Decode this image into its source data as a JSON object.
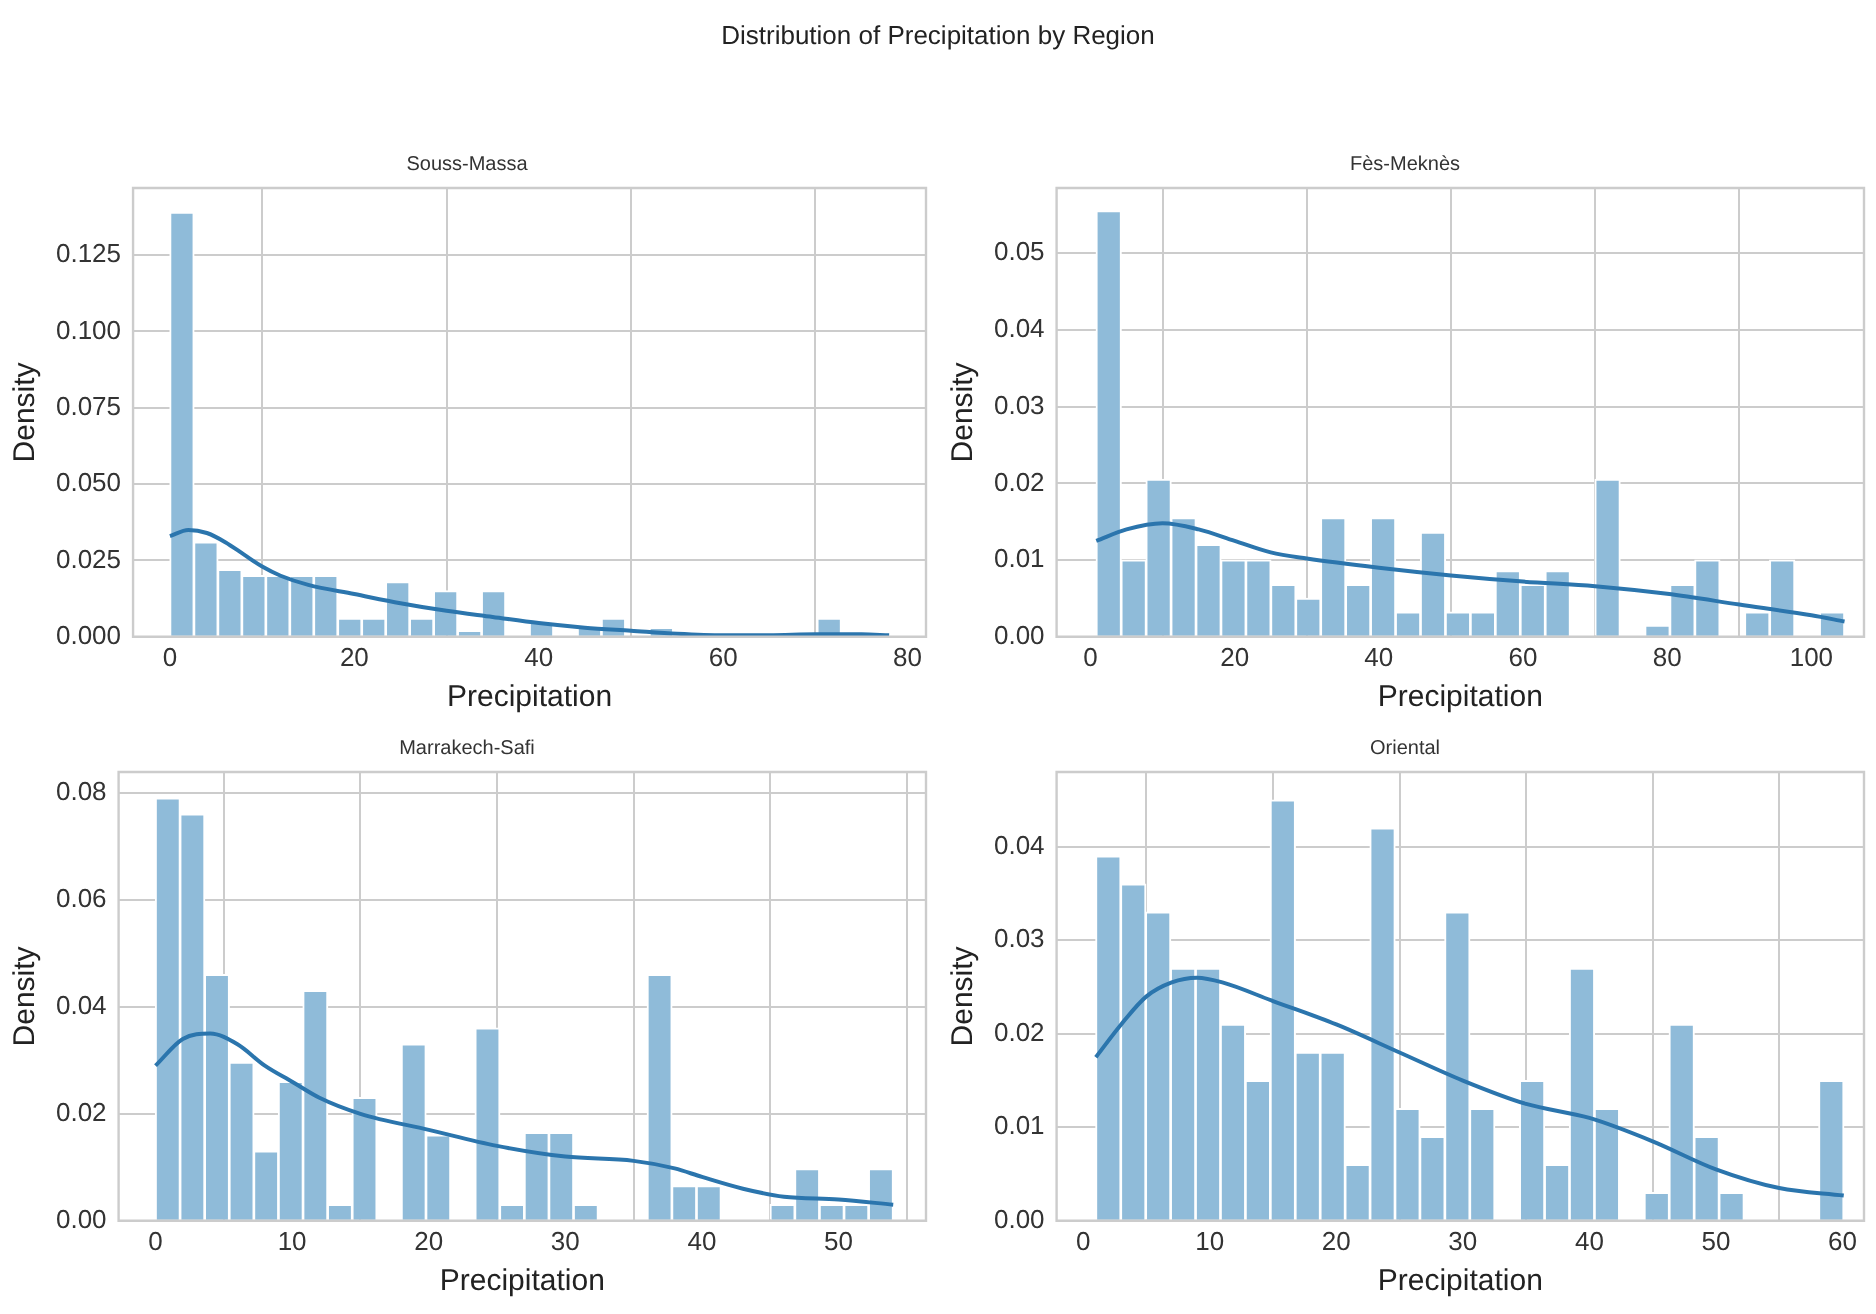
{
  "chart_data": [
    {
      "type": "histogram",
      "title": "Souss-Massa",
      "xlabel": "Precipitation",
      "ylabel": "Density",
      "annotations": [
        "Distribution of Precipitation by Region"
      ],
      "grid": true,
      "xlim": [
        -4,
        82
      ],
      "ylim": [
        0,
        0.147
      ],
      "xticks": [
        0,
        20,
        40,
        60,
        80
      ],
      "yticks": [
        {
          "value": 0,
          "label": "0.000"
        },
        {
          "value": 0.025,
          "label": "0.025"
        },
        {
          "value": 0.05,
          "label": "0.050"
        },
        {
          "value": 0.075,
          "label": "0.075"
        },
        {
          "value": 0.1,
          "label": "0.100"
        },
        {
          "value": 0.125,
          "label": "0.125"
        }
      ],
      "series": [
        {
          "color": "#8fbbd9",
          "bins": [
            0,
            2.6,
            5.2,
            7.8,
            10.4,
            13,
            15.6,
            18.2,
            20.8,
            23.4,
            26,
            28.6,
            31.2,
            33.8,
            36.4,
            39,
            41.6,
            44.2,
            46.8,
            49.4,
            52,
            54.6,
            57.2,
            59.8,
            62.4,
            65,
            67.6,
            70.2,
            72.8,
            75.4,
            78
          ],
          "values": [
            0.139,
            0.031,
            0.022,
            0.02,
            0.02,
            0.02,
            0.02,
            0.006,
            0.006,
            0.018,
            0.006,
            0.015,
            0.002,
            0.015,
            0,
            0.005,
            0,
            0.003,
            0.006,
            0,
            0.003,
            0,
            0,
            0,
            0,
            0,
            0,
            0.006,
            0,
            0
          ]
        },
        {
          "type": "line",
          "color": "#2b75ad",
          "x": [
            0,
            2,
            4,
            6,
            8,
            10,
            12,
            15,
            20,
            25,
            30,
            35,
            40,
            45,
            50,
            55,
            60,
            65,
            70,
            75,
            78
          ],
          "values": [
            0.033,
            0.035,
            0.034,
            0.031,
            0.027,
            0.023,
            0.02,
            0.017,
            0.014,
            0.011,
            0.0085,
            0.0065,
            0.0045,
            0.003,
            0.002,
            0.001,
            0.0005,
            0.0005,
            0.0008,
            0.0008,
            0.0005
          ]
        }
      ]
    },
    {
      "type": "histogram",
      "title": "Fès-Meknès",
      "xlabel": "Precipitation",
      "ylabel": "Density",
      "grid": true,
      "xlim": [
        -4.7,
        107.3
      ],
      "ylim": [
        0,
        0.0585
      ],
      "xticks": [
        0,
        20,
        40,
        60,
        80,
        100
      ],
      "yticks": [
        {
          "value": 0,
          "label": "0.00"
        },
        {
          "value": 0.01,
          "label": "0.01"
        },
        {
          "value": 0.02,
          "label": "0.02"
        },
        {
          "value": 0.03,
          "label": "0.03"
        },
        {
          "value": 0.04,
          "label": "0.04"
        },
        {
          "value": 0.05,
          "label": "0.05"
        }
      ],
      "series": [
        {
          "color": "#8fbbd9",
          "bins": [
            0.8,
            4.26,
            7.72,
            11.18,
            14.64,
            18.1,
            21.56,
            25.02,
            28.48,
            31.94,
            35.4,
            38.86,
            42.32,
            45.78,
            49.24,
            52.7,
            56.16,
            59.62,
            63.08,
            66.54,
            70,
            73.46,
            76.92,
            80.38,
            83.84,
            87.3,
            90.76,
            94.22,
            97.68,
            101.14,
            104.6
          ],
          "values": [
            0.0555,
            0.01,
            0.0205,
            0.0155,
            0.012,
            0.01,
            0.01,
            0.0068,
            0.005,
            0.0155,
            0.0068,
            0.0155,
            0.0032,
            0.0136,
            0.0032,
            0.0032,
            0.0086,
            0.0068,
            0.0086,
            0,
            0.0205,
            0,
            0.0015,
            0.0068,
            0.01,
            0,
            0.0032,
            0.01,
            0,
            0.0032
          ]
        },
        {
          "type": "line",
          "color": "#2b75ad",
          "x": [
            0.8,
            5,
            10,
            15,
            20,
            25,
            30,
            40,
            50,
            60,
            70,
            80,
            90,
            100,
            104.6
          ],
          "values": [
            0.0125,
            0.014,
            0.0148,
            0.014,
            0.0125,
            0.011,
            0.0102,
            0.009,
            0.008,
            0.0072,
            0.0066,
            0.0056,
            0.0042,
            0.0028,
            0.002
          ]
        }
      ]
    },
    {
      "type": "histogram",
      "title": "Marrakech-Safi",
      "xlabel": "Precipitation",
      "ylabel": "Density",
      "grid": true,
      "xlim": [
        -2.7,
        56.4
      ],
      "ylim": [
        0,
        0.0839
      ],
      "xticks": [
        0,
        10,
        20,
        30,
        40,
        50
      ],
      "yticks": [
        {
          "value": 0,
          "label": "0.00"
        },
        {
          "value": 0.02,
          "label": "0.02"
        },
        {
          "value": 0.04,
          "label": "0.04"
        },
        {
          "value": 0.06,
          "label": "0.06"
        },
        {
          "value": 0.08,
          "label": "0.08"
        }
      ],
      "series": [
        {
          "color": "#8fbbd9",
          "bins": [
            0,
            1.8,
            3.6,
            5.4,
            7.2,
            9,
            10.8,
            12.6,
            14.4,
            16.2,
            18,
            19.8,
            21.6,
            23.4,
            25.2,
            27,
            28.8,
            30.6,
            32.4,
            34.2,
            36,
            37.8,
            39.6,
            41.4,
            43.2,
            45,
            46.8,
            48.6,
            50.4,
            52.2,
            54
          ],
          "values": [
            0.079,
            0.076,
            0.046,
            0.0296,
            0.013,
            0.026,
            0.043,
            0.003,
            0.023,
            0,
            0.033,
            0.016,
            0,
            0.036,
            0.003,
            0.0165,
            0.0165,
            0.003,
            0,
            0,
            0.046,
            0.0065,
            0.0065,
            0,
            0,
            0.003,
            0.0097,
            0.003,
            0.003,
            0.0097
          ]
        },
        {
          "type": "line",
          "color": "#2b75ad",
          "x": [
            0,
            2,
            4,
            6,
            8,
            10,
            12,
            15,
            20,
            25,
            30,
            35,
            38,
            40,
            43,
            46,
            50,
            54
          ],
          "values": [
            0.029,
            0.034,
            0.035,
            0.033,
            0.029,
            0.026,
            0.023,
            0.02,
            0.017,
            0.014,
            0.012,
            0.0112,
            0.0098,
            0.0082,
            0.006,
            0.0045,
            0.004,
            0.003
          ]
        }
      ]
    },
    {
      "type": "histogram",
      "title": "Oriental",
      "xlabel": "Precipitation",
      "ylabel": "Density",
      "grid": true,
      "xlim": [
        -2.1,
        61.7
      ],
      "ylim": [
        0,
        0.048
      ],
      "xticks": [
        0,
        10,
        20,
        30,
        40,
        50,
        60
      ],
      "yticks": [
        {
          "value": 0,
          "label": "0.00"
        },
        {
          "value": 0.01,
          "label": "0.01"
        },
        {
          "value": 0.02,
          "label": "0.02"
        },
        {
          "value": 0.03,
          "label": "0.03"
        },
        {
          "value": 0.04,
          "label": "0.04"
        }
      ],
      "series": [
        {
          "color": "#8fbbd9",
          "bins": [
            1,
            2.97,
            4.94,
            6.91,
            8.88,
            10.85,
            12.82,
            14.79,
            16.76,
            18.73,
            20.7,
            22.67,
            24.64,
            26.61,
            28.58,
            30.55,
            32.52,
            34.49,
            36.46,
            38.43,
            40.4,
            42.37,
            44.34,
            46.31,
            48.28,
            50.25,
            52.22,
            54.19,
            56.16,
            58.13,
            60.1
          ],
          "values": [
            0.039,
            0.036,
            0.033,
            0.027,
            0.027,
            0.021,
            0.015,
            0.045,
            0.018,
            0.018,
            0.006,
            0.042,
            0.012,
            0.009,
            0.033,
            0.012,
            0,
            0.015,
            0.006,
            0.027,
            0.012,
            0,
            0.003,
            0.021,
            0.009,
            0.003,
            0,
            0,
            0,
            0.015
          ]
        },
        {
          "type": "line",
          "color": "#2b75ad",
          "x": [
            1,
            3,
            5,
            7,
            9,
            11,
            15,
            20,
            25,
            30,
            35,
            40,
            45,
            50,
            55,
            60.1
          ],
          "values": [
            0.0175,
            0.021,
            0.024,
            0.0255,
            0.026,
            0.0255,
            0.0235,
            0.021,
            0.018,
            0.015,
            0.0125,
            0.011,
            0.0085,
            0.0055,
            0.0035,
            0.0027
          ]
        }
      ]
    }
  ]
}
